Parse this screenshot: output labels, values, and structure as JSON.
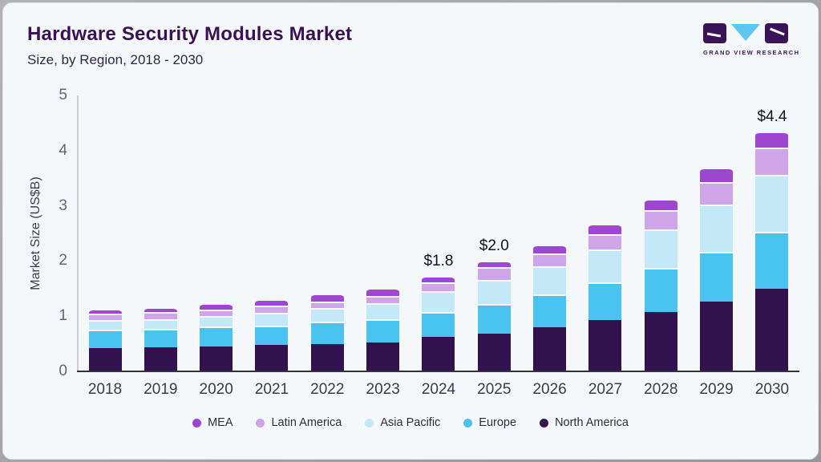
{
  "header": {
    "title": "Hardware Security Modules Market",
    "subtitle": "Size, by Region, 2018 - 2030"
  },
  "logo": {
    "brand": "GRAND VIEW RESEARCH"
  },
  "chart_data": {
    "type": "bar",
    "stacked": true,
    "title": "Hardware Security Modules Market Size, by Region, 2018 - 2030",
    "xlabel": "",
    "ylabel": "Market Size (US$B)",
    "ylim": [
      0,
      5
    ],
    "yticks": [
      "0",
      "1",
      "2",
      "3",
      "4",
      "5"
    ],
    "grid": false,
    "legend_position": "bottom",
    "legend_order": [
      "MEA",
      "Latin America",
      "Asia Pacific",
      "Europe",
      "North America"
    ],
    "categories": [
      "2018",
      "2019",
      "2020",
      "2021",
      "2022",
      "2023",
      "2024",
      "2025",
      "2026",
      "2027",
      "2028",
      "2029",
      "2030"
    ],
    "series": [
      {
        "name": "North America",
        "color": "#31124E",
        "values": [
          0.42,
          0.43,
          0.45,
          0.48,
          0.5,
          0.53,
          0.62,
          0.69,
          0.8,
          0.93,
          1.08,
          1.27,
          1.49
        ]
      },
      {
        "name": "Europe",
        "color": "#4AC3F0",
        "values": [
          0.33,
          0.34,
          0.36,
          0.35,
          0.4,
          0.42,
          0.46,
          0.53,
          0.59,
          0.68,
          0.79,
          0.9,
          1.04
        ]
      },
      {
        "name": "Asia Pacific",
        "color": "#C3E8F8",
        "values": [
          0.18,
          0.18,
          0.19,
          0.23,
          0.25,
          0.29,
          0.37,
          0.43,
          0.51,
          0.6,
          0.7,
          0.85,
          1.03
        ]
      },
      {
        "name": "Latin America",
        "color": "#CEA5E8",
        "values": [
          0.11,
          0.12,
          0.12,
          0.13,
          0.12,
          0.13,
          0.17,
          0.24,
          0.24,
          0.27,
          0.35,
          0.41,
          0.49
        ]
      },
      {
        "name": "MEA",
        "color": "#9E46D0",
        "values": [
          0.1,
          0.1,
          0.11,
          0.12,
          0.14,
          0.14,
          0.11,
          0.11,
          0.16,
          0.19,
          0.21,
          0.26,
          0.3
        ]
      }
    ],
    "annotations": [
      {
        "category": "2024",
        "label": "$1.8"
      },
      {
        "category": "2025",
        "label": "$2.0"
      },
      {
        "category": "2030",
        "label": "$4.4"
      }
    ],
    "colors": {
      "title": "#3A1056",
      "background": "#F5F8FB",
      "axis": "#323237"
    }
  }
}
